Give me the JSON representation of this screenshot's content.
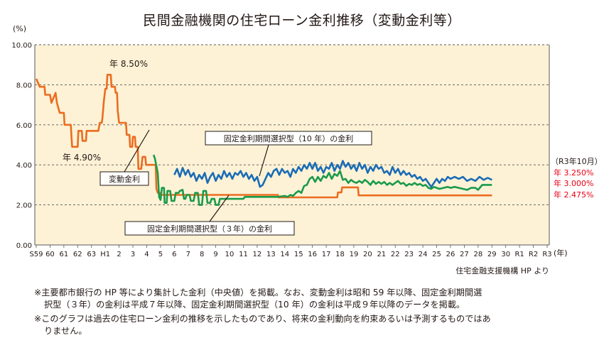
{
  "chart_data": {
    "type": "line",
    "title": "民間金融機関の住宅ローン金利推移（変動金利等）",
    "y_unit": "(%)",
    "x_unit": "(年)",
    "ylim": [
      0,
      10
    ],
    "y_ticks": [
      "0.00",
      "2.00",
      "4.00",
      "6.00",
      "8.00",
      "10.00"
    ],
    "x_ticks": [
      "S59",
      "60",
      "61",
      "62",
      "63",
      "H1",
      "2",
      "3",
      "4",
      "5",
      "6",
      "7",
      "8",
      "9",
      "10",
      "11",
      "12",
      "13",
      "14",
      "15",
      "16",
      "17",
      "18",
      "19",
      "20",
      "21",
      "22",
      "23",
      "24",
      "25",
      "26",
      "27",
      "28",
      "29",
      "30",
      "R1",
      "R2",
      "R3"
    ],
    "grid": "horizontal-dashed",
    "source": "住宅金融支援機構 HP より",
    "series": [
      {
        "name": "変動金利",
        "color": "#ec6c1f",
        "points": [
          [
            0.0,
            8.3
          ],
          [
            0.25,
            7.9
          ],
          [
            0.6,
            7.9
          ],
          [
            0.65,
            7.5
          ],
          [
            1.0,
            7.5
          ],
          [
            1.1,
            7.1
          ],
          [
            1.4,
            7.6
          ],
          [
            1.5,
            7.1
          ],
          [
            1.7,
            6.6
          ],
          [
            2.0,
            6.6
          ],
          [
            2.05,
            6.0
          ],
          [
            2.5,
            6.0
          ],
          [
            2.55,
            5.4
          ],
          [
            2.6,
            4.9
          ],
          [
            3.0,
            4.9
          ],
          [
            3.05,
            5.7
          ],
          [
            3.3,
            5.7
          ],
          [
            3.35,
            5.2
          ],
          [
            3.6,
            5.2
          ],
          [
            3.65,
            5.7
          ],
          [
            4.5,
            5.7
          ],
          [
            4.6,
            6.1
          ],
          [
            4.75,
            6.1
          ],
          [
            4.8,
            6.4
          ],
          [
            4.9,
            7.2
          ],
          [
            5.0,
            7.8
          ],
          [
            5.1,
            7.8
          ],
          [
            5.15,
            8.5
          ],
          [
            5.4,
            8.5
          ],
          [
            5.45,
            7.9
          ],
          [
            5.7,
            7.9
          ],
          [
            5.75,
            7.6
          ],
          [
            5.85,
            7.6
          ],
          [
            5.9,
            6.7
          ],
          [
            6.0,
            6.1
          ],
          [
            6.5,
            6.1
          ],
          [
            6.55,
            5.5
          ],
          [
            6.75,
            5.5
          ],
          [
            6.8,
            4.9
          ],
          [
            6.95,
            4.9
          ],
          [
            7.0,
            5.4
          ],
          [
            7.15,
            5.4
          ],
          [
            7.2,
            4.9
          ],
          [
            7.35,
            4.9
          ],
          [
            7.4,
            3.8
          ],
          [
            7.6,
            3.8
          ],
          [
            7.7,
            4.4
          ],
          [
            7.9,
            4.4
          ],
          [
            7.95,
            4.0
          ],
          [
            8.65,
            4.0
          ],
          [
            8.7,
            2.8
          ],
          [
            8.8,
            2.6
          ],
          [
            8.95,
            2.6
          ],
          [
            9.0,
            2.5
          ],
          [
            17.5,
            2.5
          ],
          [
            17.55,
            2.375
          ],
          [
            21.8,
            2.375
          ],
          [
            21.85,
            2.625
          ],
          [
            22.1,
            2.625
          ],
          [
            22.15,
            2.875
          ],
          [
            23.3,
            2.875
          ],
          [
            23.35,
            2.475
          ],
          [
            33.0,
            2.475
          ]
        ]
      },
      {
        "name": "固定金利期間選択型（３年）",
        "color": "#1a9a4a",
        "points": [
          [
            8.5,
            4.5
          ],
          [
            8.6,
            4.3
          ],
          [
            8.8,
            3.6
          ],
          [
            8.9,
            2.4
          ],
          [
            9.0,
            2.25
          ],
          [
            9.1,
            2.85
          ],
          [
            9.25,
            2.85
          ],
          [
            9.3,
            2.1
          ],
          [
            9.45,
            2.1
          ],
          [
            9.5,
            2.7
          ],
          [
            9.7,
            2.7
          ],
          [
            9.8,
            2.2
          ],
          [
            10.0,
            2.2
          ],
          [
            10.1,
            2.6
          ],
          [
            10.3,
            2.6
          ],
          [
            10.4,
            2.7
          ],
          [
            10.6,
            2.75
          ],
          [
            10.7,
            2.3
          ],
          [
            10.8,
            2.3
          ],
          [
            10.9,
            2.5
          ],
          [
            11.1,
            2.5
          ],
          [
            11.2,
            2.2
          ],
          [
            11.4,
            2.2
          ],
          [
            11.5,
            2.6
          ],
          [
            11.7,
            2.6
          ],
          [
            11.8,
            2.0
          ],
          [
            12.0,
            2.0
          ],
          [
            12.1,
            2.7
          ],
          [
            12.3,
            2.7
          ],
          [
            12.4,
            2.1
          ],
          [
            12.6,
            2.1
          ],
          [
            12.7,
            2.3
          ],
          [
            12.9,
            2.3
          ],
          [
            13.0,
            2.0
          ],
          [
            13.2,
            2.0
          ],
          [
            13.3,
            2.3
          ],
          [
            15.0,
            2.3
          ],
          [
            15.1,
            2.4
          ],
          [
            16.0,
            2.4
          ],
          [
            17.5,
            2.4
          ],
          [
            18.0,
            2.45
          ],
          [
            18.2,
            2.4
          ],
          [
            18.4,
            2.5
          ],
          [
            18.6,
            2.45
          ],
          [
            18.8,
            2.6
          ],
          [
            19.0,
            2.7
          ],
          [
            19.2,
            2.6
          ],
          [
            19.4,
            2.95
          ],
          [
            19.6,
            3.0
          ],
          [
            19.8,
            3.3
          ],
          [
            20.0,
            3.4
          ],
          [
            20.2,
            3.15
          ],
          [
            20.4,
            3.4
          ],
          [
            20.6,
            3.2
          ],
          [
            20.8,
            3.45
          ],
          [
            21.0,
            3.35
          ],
          [
            21.2,
            3.6
          ],
          [
            21.4,
            3.3
          ],
          [
            21.6,
            3.55
          ],
          [
            21.8,
            3.45
          ],
          [
            22.0,
            3.7
          ],
          [
            22.2,
            3.25
          ],
          [
            22.4,
            3.3
          ],
          [
            22.6,
            3.1
          ],
          [
            22.8,
            3.25
          ],
          [
            23.0,
            3.15
          ],
          [
            23.2,
            3.1
          ],
          [
            23.4,
            3.2
          ],
          [
            23.6,
            3.1
          ],
          [
            23.8,
            3.25
          ],
          [
            24.0,
            3.15
          ],
          [
            24.2,
            3.0
          ],
          [
            24.4,
            3.2
          ],
          [
            24.6,
            3.05
          ],
          [
            24.8,
            3.15
          ],
          [
            25.0,
            3.05
          ],
          [
            25.2,
            3.15
          ],
          [
            25.4,
            3.0
          ],
          [
            25.6,
            3.1
          ],
          [
            25.8,
            3.0
          ],
          [
            26.0,
            3.1
          ],
          [
            26.2,
            3.2
          ],
          [
            26.4,
            3.05
          ],
          [
            26.6,
            3.1
          ],
          [
            26.8,
            2.95
          ],
          [
            27.0,
            3.05
          ],
          [
            27.2,
            3.0
          ],
          [
            27.4,
            3.1
          ],
          [
            27.6,
            3.0
          ],
          [
            27.8,
            3.05
          ],
          [
            28.0,
            2.95
          ],
          [
            28.2,
            3.0
          ],
          [
            28.4,
            2.85
          ],
          [
            28.6,
            2.8
          ],
          [
            28.8,
            2.9
          ],
          [
            29.0,
            2.85
          ],
          [
            29.2,
            2.8
          ],
          [
            29.5,
            2.85
          ],
          [
            29.8,
            2.9
          ],
          [
            30.0,
            2.85
          ],
          [
            30.3,
            2.9
          ],
          [
            30.6,
            2.85
          ],
          [
            30.9,
            2.8
          ],
          [
            31.2,
            2.75
          ],
          [
            31.5,
            2.85
          ],
          [
            31.8,
            2.85
          ],
          [
            32.0,
            2.75
          ],
          [
            32.3,
            3.0
          ],
          [
            32.6,
            3.0
          ],
          [
            33.0,
            3.0
          ]
        ]
      },
      {
        "name": "固定金利期間選択型（10年）",
        "color": "#1a6cb5",
        "points": [
          [
            10.0,
            3.5
          ],
          [
            10.2,
            3.8
          ],
          [
            10.4,
            3.4
          ],
          [
            10.6,
            3.85
          ],
          [
            10.8,
            3.5
          ],
          [
            11.0,
            3.75
          ],
          [
            11.2,
            3.4
          ],
          [
            11.4,
            3.6
          ],
          [
            11.6,
            3.2
          ],
          [
            11.8,
            3.5
          ],
          [
            12.0,
            3.3
          ],
          [
            12.2,
            3.6
          ],
          [
            12.4,
            3.1
          ],
          [
            12.6,
            3.4
          ],
          [
            12.8,
            3.6
          ],
          [
            13.0,
            3.2
          ],
          [
            13.2,
            3.5
          ],
          [
            13.4,
            3.3
          ],
          [
            13.6,
            3.7
          ],
          [
            13.8,
            3.4
          ],
          [
            14.0,
            3.6
          ],
          [
            14.2,
            3.3
          ],
          [
            14.4,
            3.6
          ],
          [
            14.6,
            3.5
          ],
          [
            14.8,
            3.7
          ],
          [
            15.0,
            3.4
          ],
          [
            15.2,
            3.6
          ],
          [
            15.4,
            3.3
          ],
          [
            15.6,
            3.5
          ],
          [
            15.8,
            3.2
          ],
          [
            16.0,
            3.4
          ],
          [
            16.2,
            2.9
          ],
          [
            16.4,
            3.0
          ],
          [
            16.6,
            3.3
          ],
          [
            16.8,
            3.6
          ],
          [
            17.0,
            3.4
          ],
          [
            17.2,
            3.7
          ],
          [
            17.4,
            3.8
          ],
          [
            17.6,
            3.5
          ],
          [
            17.8,
            3.8
          ],
          [
            18.0,
            3.6
          ],
          [
            18.2,
            3.7
          ],
          [
            18.4,
            3.4
          ],
          [
            18.6,
            3.8
          ],
          [
            18.8,
            3.6
          ],
          [
            19.0,
            3.9
          ],
          [
            19.2,
            3.7
          ],
          [
            19.4,
            4.0
          ],
          [
            19.6,
            3.8
          ],
          [
            19.8,
            4.1
          ],
          [
            20.0,
            3.8
          ],
          [
            20.2,
            4.1
          ],
          [
            20.4,
            3.7
          ],
          [
            20.6,
            3.9
          ],
          [
            20.8,
            3.6
          ],
          [
            21.0,
            3.9
          ],
          [
            21.2,
            3.8
          ],
          [
            21.4,
            4.1
          ],
          [
            21.6,
            3.7
          ],
          [
            21.8,
            4.0
          ],
          [
            22.0,
            3.8
          ],
          [
            22.2,
            4.2
          ],
          [
            22.4,
            3.9
          ],
          [
            22.6,
            4.1
          ],
          [
            22.8,
            3.8
          ],
          [
            23.0,
            4.0
          ],
          [
            23.2,
            3.7
          ],
          [
            23.4,
            4.1
          ],
          [
            23.6,
            3.8
          ],
          [
            23.8,
            4.0
          ],
          [
            24.0,
            3.6
          ],
          [
            24.2,
            3.9
          ],
          [
            24.4,
            3.7
          ],
          [
            24.6,
            4.0
          ],
          [
            24.8,
            3.8
          ],
          [
            25.0,
            3.9
          ],
          [
            25.2,
            3.6
          ],
          [
            25.4,
            3.7
          ],
          [
            25.6,
            3.5
          ],
          [
            25.8,
            3.9
          ],
          [
            26.0,
            3.6
          ],
          [
            26.2,
            3.8
          ],
          [
            26.4,
            3.5
          ],
          [
            26.6,
            3.7
          ],
          [
            26.8,
            3.5
          ],
          [
            27.0,
            3.6
          ],
          [
            27.2,
            3.4
          ],
          [
            27.4,
            3.5
          ],
          [
            27.6,
            3.3
          ],
          [
            27.8,
            3.4
          ],
          [
            28.0,
            3.2
          ],
          [
            28.2,
            3.3
          ],
          [
            28.4,
            3.1
          ],
          [
            28.6,
            2.9
          ],
          [
            28.8,
            3.1
          ],
          [
            29.0,
            3.3
          ],
          [
            29.2,
            3.1
          ],
          [
            29.4,
            3.3
          ],
          [
            29.6,
            3.2
          ],
          [
            29.8,
            3.4
          ],
          [
            30.0,
            3.3
          ],
          [
            30.3,
            3.4
          ],
          [
            30.6,
            3.3
          ],
          [
            30.9,
            3.4
          ],
          [
            31.2,
            3.2
          ],
          [
            31.5,
            3.3
          ],
          [
            31.8,
            3.2
          ],
          [
            32.1,
            3.4
          ],
          [
            32.4,
            3.25
          ],
          [
            32.7,
            3.35
          ],
          [
            33.0,
            3.25
          ]
        ]
      }
    ],
    "annotations": [
      {
        "text": "年 8.50%",
        "x": 5.3,
        "y": 8.5
      },
      {
        "text": "年 4.90%",
        "x": 2.7,
        "y": 4.9
      },
      {
        "text": "変動金利",
        "x": 5.8,
        "y": 6.1,
        "boxed": true
      },
      {
        "text": "固定金利期間選択型（３年）の金利",
        "x": 10.0,
        "y": 2.5,
        "boxed": true
      },
      {
        "text": "固定金利期間選択型（10 年）の金利",
        "x": 12.8,
        "y": 3.3,
        "boxed": true
      }
    ],
    "end_labels": {
      "heading": "（R3年10月）",
      "items": [
        {
          "text": "年 3.250%",
          "color": "#e60012"
        },
        {
          "text": "年 3.000%",
          "color": "#e60012"
        },
        {
          "text": "年 2.475%",
          "color": "#e60012"
        }
      ]
    }
  },
  "footnotes": [
    "※主要都市銀行の HP 等により集計した金利（中央値）を掲載。なお、変動金利は昭和 59 年以降、固定金利期間選",
    "択型（３年）の金利は平成７年以降、固定金利期間選択型（10 年）の金利は平成９年以降のデータを掲載。",
    "※このグラフは過去の住宅ローン金利の推移を示したものであり、将来の金利動向を約束あるいは予測するものではあ",
    "りません。"
  ]
}
